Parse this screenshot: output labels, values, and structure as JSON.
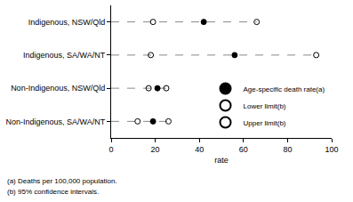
{
  "chart_data": {
    "type": "dot",
    "categories": [
      "Indigenous, NSW/Qld",
      "Indigenous, SA/WA/NT",
      "Non-Indigenous, NSW/Qld",
      "Non-Indigenous, SA/WA/NT"
    ],
    "series": [
      {
        "name": "Age-specific death rate(a)",
        "color": "#000000",
        "marker": "circle",
        "values": [
          42,
          56,
          21,
          19
        ]
      },
      {
        "name": "Lower limit(b)",
        "color": "#000000",
        "marker": "circle-open",
        "values": [
          19,
          18,
          17,
          12
        ]
      },
      {
        "name": "Upper limit(b)",
        "color": "#000000",
        "marker": "circle-open",
        "values": [
          66,
          93,
          25,
          26
        ]
      }
    ],
    "x_label": "rate",
    "xlim": [
      0,
      100
    ],
    "xticks": [
      0,
      20,
      40,
      60,
      80,
      100
    ],
    "grid": false,
    "legend": "lower right",
    "line_style": "dashed",
    "notes": [
      "(a) Deaths per 100,000 population.",
      "(b) 95% confidence intervals."
    ]
  }
}
